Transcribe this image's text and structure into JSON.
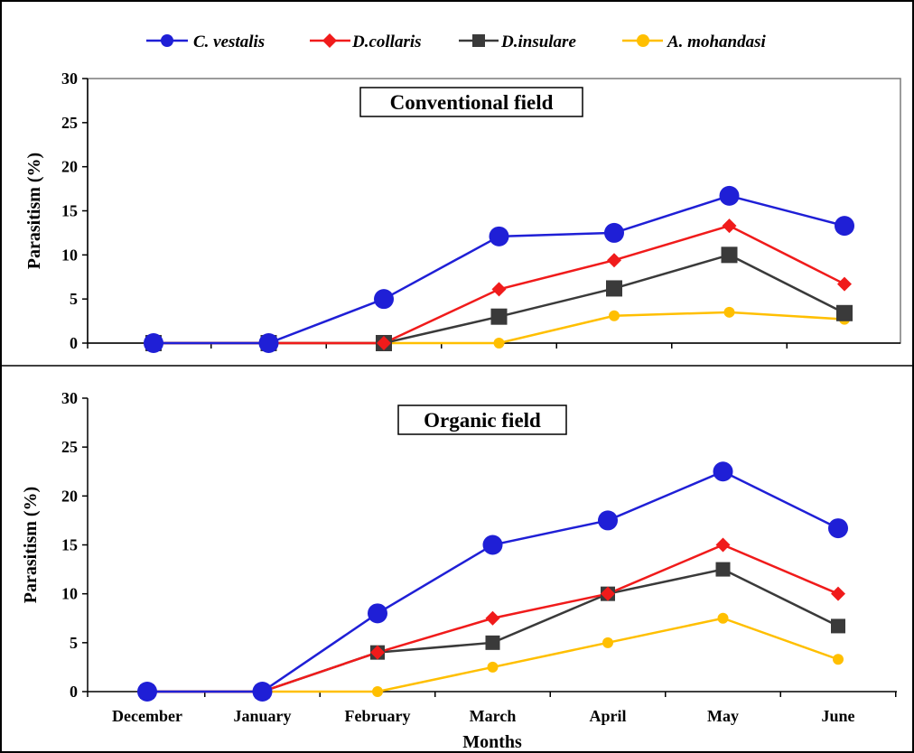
{
  "legend": {
    "position": "top",
    "items": [
      {
        "label": "C. vestalis",
        "color": "#1f1fd6",
        "marker": "circle"
      },
      {
        "label": "D.collaris",
        "color": "#f01b1b",
        "marker": "diamond"
      },
      {
        "label": "D.insulare",
        "color": "#3a3a3a",
        "marker": "square"
      },
      {
        "label": "A. mohandasi",
        "color": "#ffbf00",
        "marker": "circle"
      }
    ]
  },
  "chart_data": [
    {
      "type": "line",
      "title": "Conventional field",
      "xlabel": "",
      "ylabel": "Parasitism (%)",
      "ylim": [
        0,
        30
      ],
      "yticks": [
        "0",
        "5",
        "10",
        "15",
        "20",
        "25",
        "30"
      ],
      "categories": [
        "December",
        "January",
        "February",
        "March",
        "April",
        "May",
        "June"
      ],
      "show_xtick_labels": false,
      "series": [
        {
          "name": "C. vestalis",
          "values": [
            0,
            0,
            5,
            12.1,
            12.5,
            16.7,
            13.3
          ]
        },
        {
          "name": "D.collaris",
          "values": [
            0,
            0,
            0,
            6.1,
            9.4,
            13.3,
            6.7
          ]
        },
        {
          "name": "D.insulare",
          "values": [
            0,
            0,
            0,
            3.0,
            6.2,
            10.0,
            3.4
          ]
        },
        {
          "name": "A. mohandasi",
          "values": [
            0,
            0,
            0,
            0,
            3.1,
            3.5,
            2.7
          ]
        }
      ]
    },
    {
      "type": "line",
      "title": "Organic field",
      "xlabel": "Months",
      "ylabel": "Parasitism (%)",
      "ylim": [
        0,
        30
      ],
      "yticks": [
        "0",
        "5",
        "10",
        "15",
        "20",
        "25",
        "30"
      ],
      "categories": [
        "December",
        "January",
        "February",
        "March",
        "April",
        "May",
        "June"
      ],
      "show_xtick_labels": true,
      "series": [
        {
          "name": "C. vestalis",
          "values": [
            0,
            0,
            8.0,
            15.0,
            17.5,
            22.5,
            16.7
          ]
        },
        {
          "name": "D.collaris",
          "values": [
            0,
            0,
            4.0,
            7.5,
            10.0,
            15.0,
            10.0
          ]
        },
        {
          "name": "D.insulare",
          "values": [
            0,
            0,
            4.0,
            5.0,
            10.0,
            12.5,
            6.7
          ]
        },
        {
          "name": "A. mohandasi",
          "values": [
            0,
            0,
            0,
            2.5,
            5.0,
            7.5,
            3.3
          ]
        }
      ]
    }
  ]
}
